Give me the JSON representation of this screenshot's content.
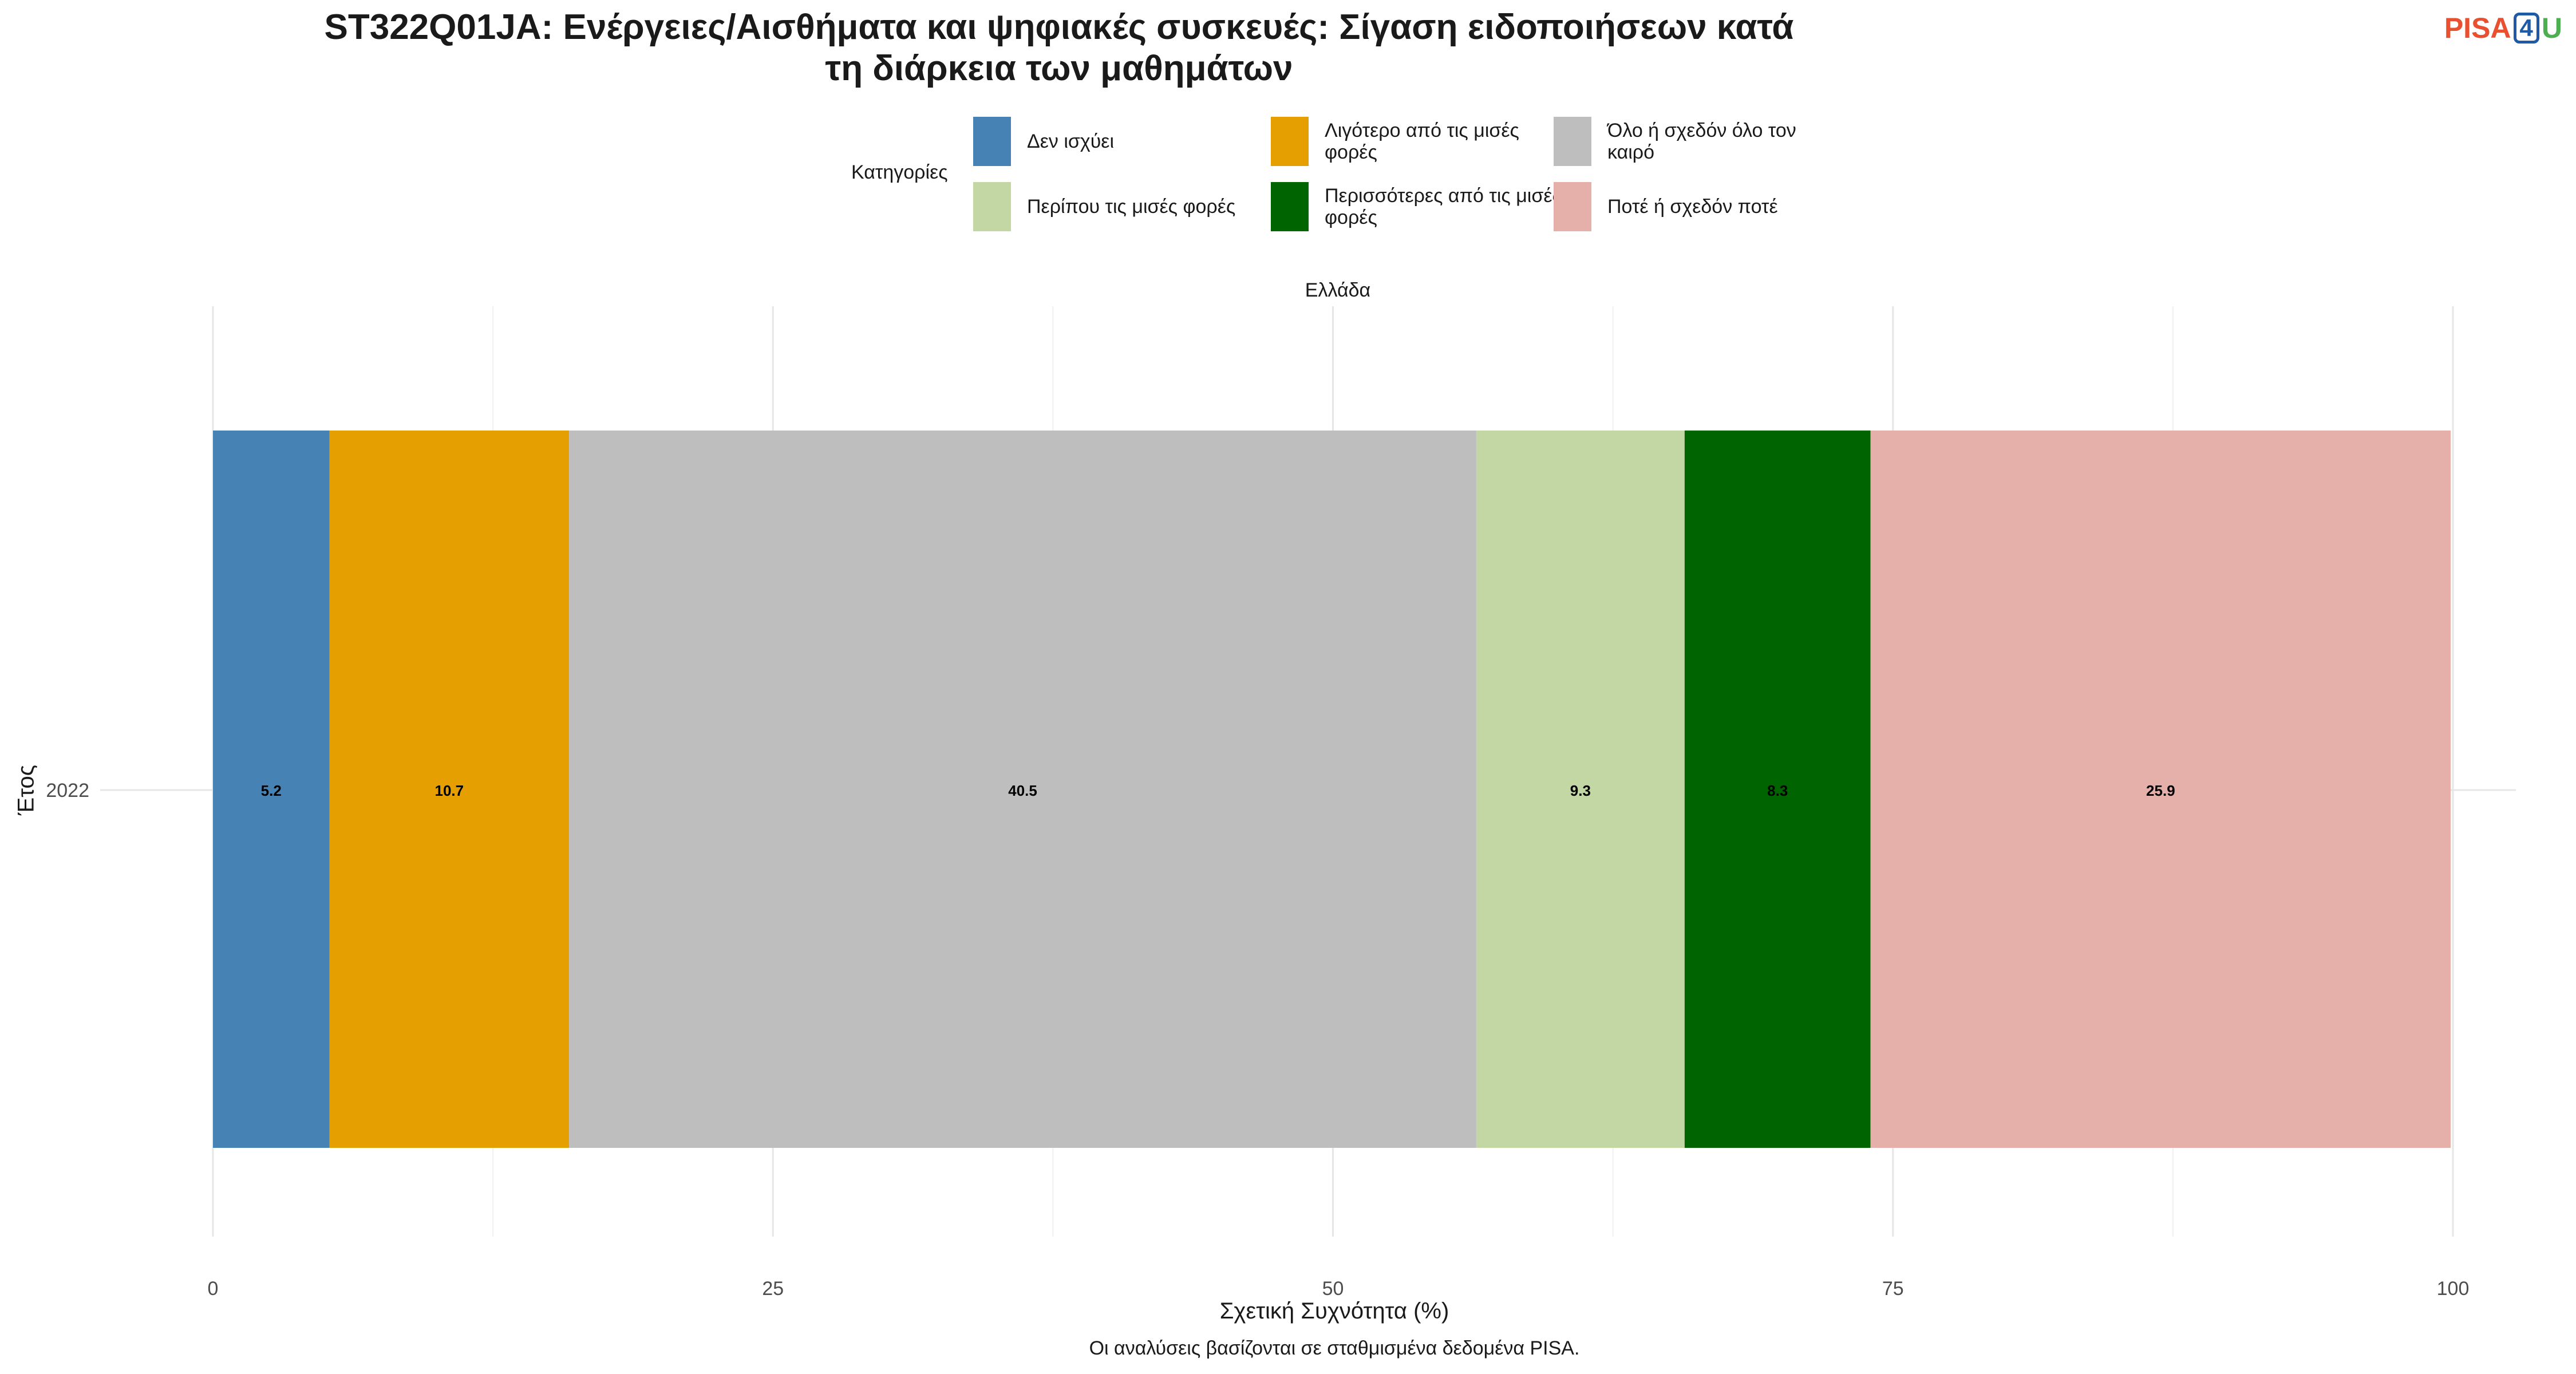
{
  "title_line1": "ST322Q01JA: Ενέργειες/Αισθήματα και ψηφιακές συσκευές: Σίγαση ειδοποιήσεων κατά",
  "title_line2": "τη διάρκεια των μαθημάτων",
  "logo": {
    "pisa": "PISA",
    "four": "4",
    "u": "U"
  },
  "legend": {
    "title": "Κατηγορίες",
    "items": [
      {
        "label": "Δεν ισχύει",
        "color": "#4682b4"
      },
      {
        "label": "Λιγότερο από τις μισές φορές",
        "color": "#e69f00"
      },
      {
        "label": "Όλο ή σχεδόν όλο τον καιρό",
        "color": "#bebebe"
      },
      {
        "label": "Περίπου τις μισές φορές",
        "color": "#c3d7a4"
      },
      {
        "label": "Περισσότερες από τις μισές φορές",
        "color": "#006400"
      },
      {
        "label": "Ποτέ ή σχεδόν ποτέ",
        "color": "#e5b0a9"
      }
    ]
  },
  "facet_label": "Ελλάδα",
  "xlabel": "Σχετική Συχνότητα (%)",
  "ylabel": "Έτος",
  "caption": "Οι αναλύσεις βασίζονται σε σταθμισμένα δεδομένα PISA.",
  "chart_data": {
    "type": "bar",
    "orientation": "horizontal",
    "stacked": true,
    "categories": [
      "2022"
    ],
    "series": [
      {
        "name": "Δεν ισχύει",
        "values": [
          5.2
        ],
        "color": "#4682b4"
      },
      {
        "name": "Λιγότερο από τις μισές φορές",
        "values": [
          10.7
        ],
        "color": "#e69f00"
      },
      {
        "name": "Όλο ή σχεδόν όλο τον καιρό",
        "values": [
          40.5
        ],
        "color": "#bebebe"
      },
      {
        "name": "Περίπου τις μισές φορές",
        "values": [
          9.3
        ],
        "color": "#c3d7a4"
      },
      {
        "name": "Περισσότερες από τις μισές φορές",
        "values": [
          8.3
        ],
        "color": "#006400"
      },
      {
        "name": "Ποτέ ή σχεδόν ποτέ",
        "values": [
          25.9
        ],
        "color": "#e5b0a9"
      }
    ],
    "xlim": [
      0,
      100
    ],
    "xticks": [
      0,
      25,
      50,
      75,
      100
    ],
    "grid": true
  }
}
